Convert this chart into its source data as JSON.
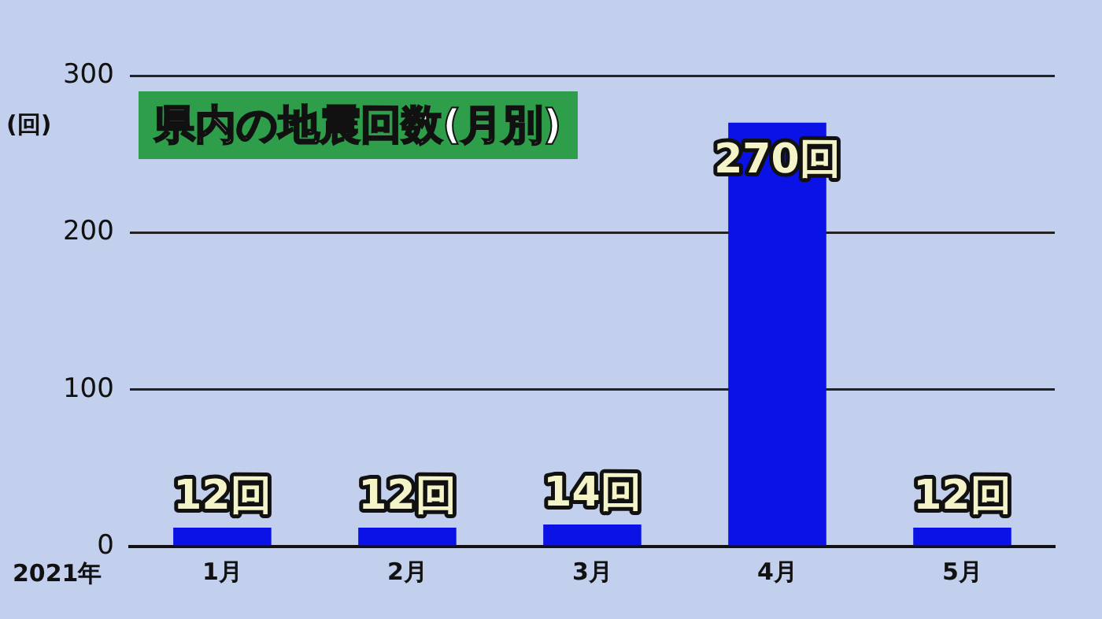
{
  "chart_data": {
    "type": "bar",
    "title": "県内の地震回数(月別)",
    "ylabel": "(回)",
    "categories": [
      "1月",
      "2月",
      "3月",
      "4月",
      "5月"
    ],
    "values": [
      12,
      12,
      14,
      270,
      12
    ],
    "color": "#0a12e6",
    "value_labels": [
      "12回",
      "12回",
      "14回",
      "270回",
      "12回"
    ],
    "ylim": [
      0,
      300
    ],
    "yticks": [
      0,
      100,
      200,
      300
    ],
    "grid": "y",
    "annotations": [
      "2021年"
    ]
  }
}
